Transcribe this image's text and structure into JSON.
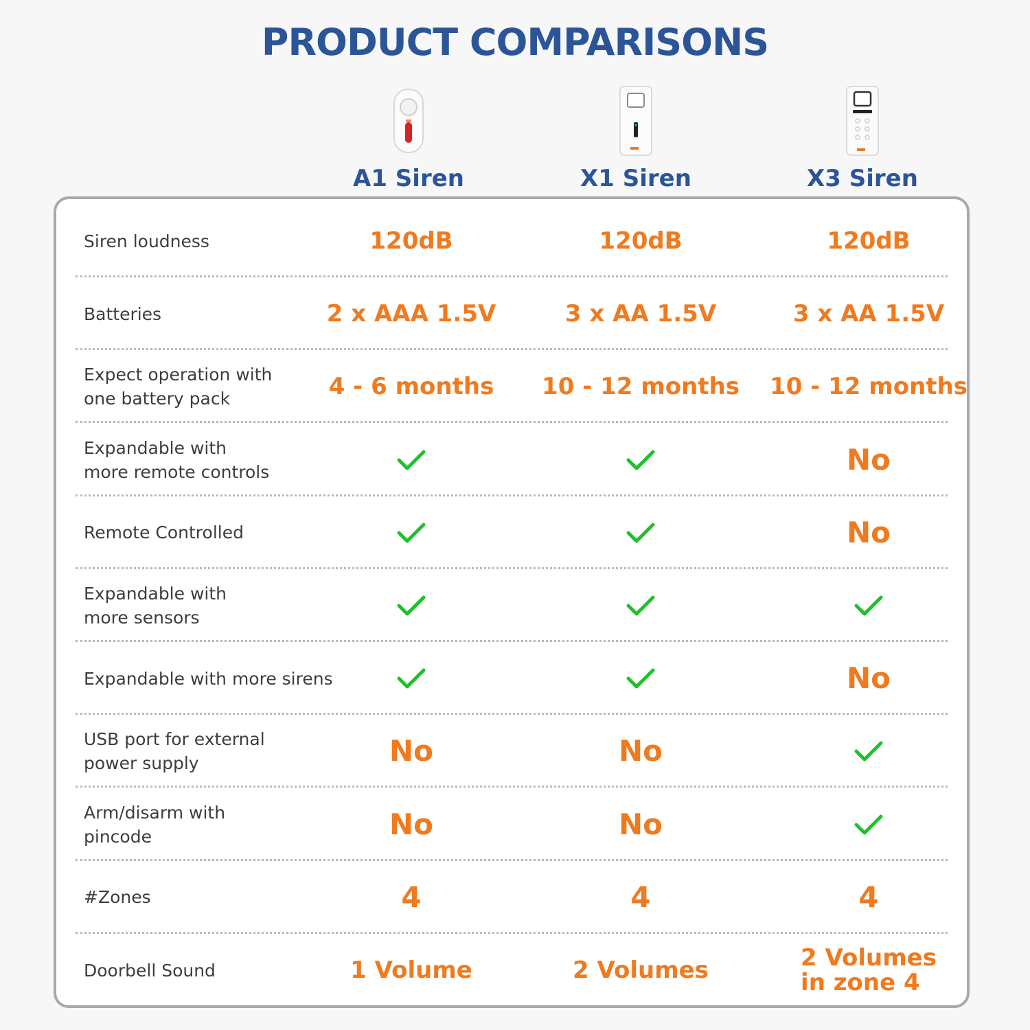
{
  "title": "PRODUCT COMPARISONS",
  "colors": {
    "title": "#2b5597",
    "value": "#f07a1e",
    "check": "#1ec12a",
    "border": "#a7a9ad"
  },
  "products": [
    {
      "name": "A1 Siren",
      "image": "a1-siren-device"
    },
    {
      "name": "X1 Siren",
      "image": "x1-siren-device"
    },
    {
      "name": "X3 Siren",
      "image": "x3-siren-device"
    }
  ],
  "rows": [
    {
      "label": "Siren loudness",
      "values": [
        "120dB",
        "120dB",
        "120dB"
      ]
    },
    {
      "label": "Batteries",
      "values": [
        "2 x AAA 1.5V",
        "3 x AA 1.5V",
        "3 x AA 1.5V"
      ]
    },
    {
      "label": "Expect operation with\none battery pack",
      "values": [
        "4 - 6 months",
        "10 - 12 months",
        "10 - 12 months"
      ]
    },
    {
      "label": "Expandable with\nmore remote controls",
      "values": [
        "check",
        "check",
        "No"
      ]
    },
    {
      "label": "Remote Controlled",
      "values": [
        "check",
        "check",
        "No"
      ]
    },
    {
      "label": "Expandable with\nmore sensors",
      "values": [
        "check",
        "check",
        "check"
      ]
    },
    {
      "label": "Expandable with more sirens",
      "values": [
        "check",
        "check",
        "No"
      ]
    },
    {
      "label": "USB port for external\npower supply",
      "values": [
        "No",
        "No",
        "check"
      ]
    },
    {
      "label": "Arm/disarm with\npincode",
      "values": [
        "No",
        "No",
        "check"
      ]
    },
    {
      "label": "#Zones",
      "values": [
        "4",
        "4",
        "4"
      ]
    },
    {
      "label": "Doorbell Sound",
      "values": [
        "1 Volume",
        "2 Volumes",
        "2 Volumes\nin zone 4"
      ]
    }
  ]
}
